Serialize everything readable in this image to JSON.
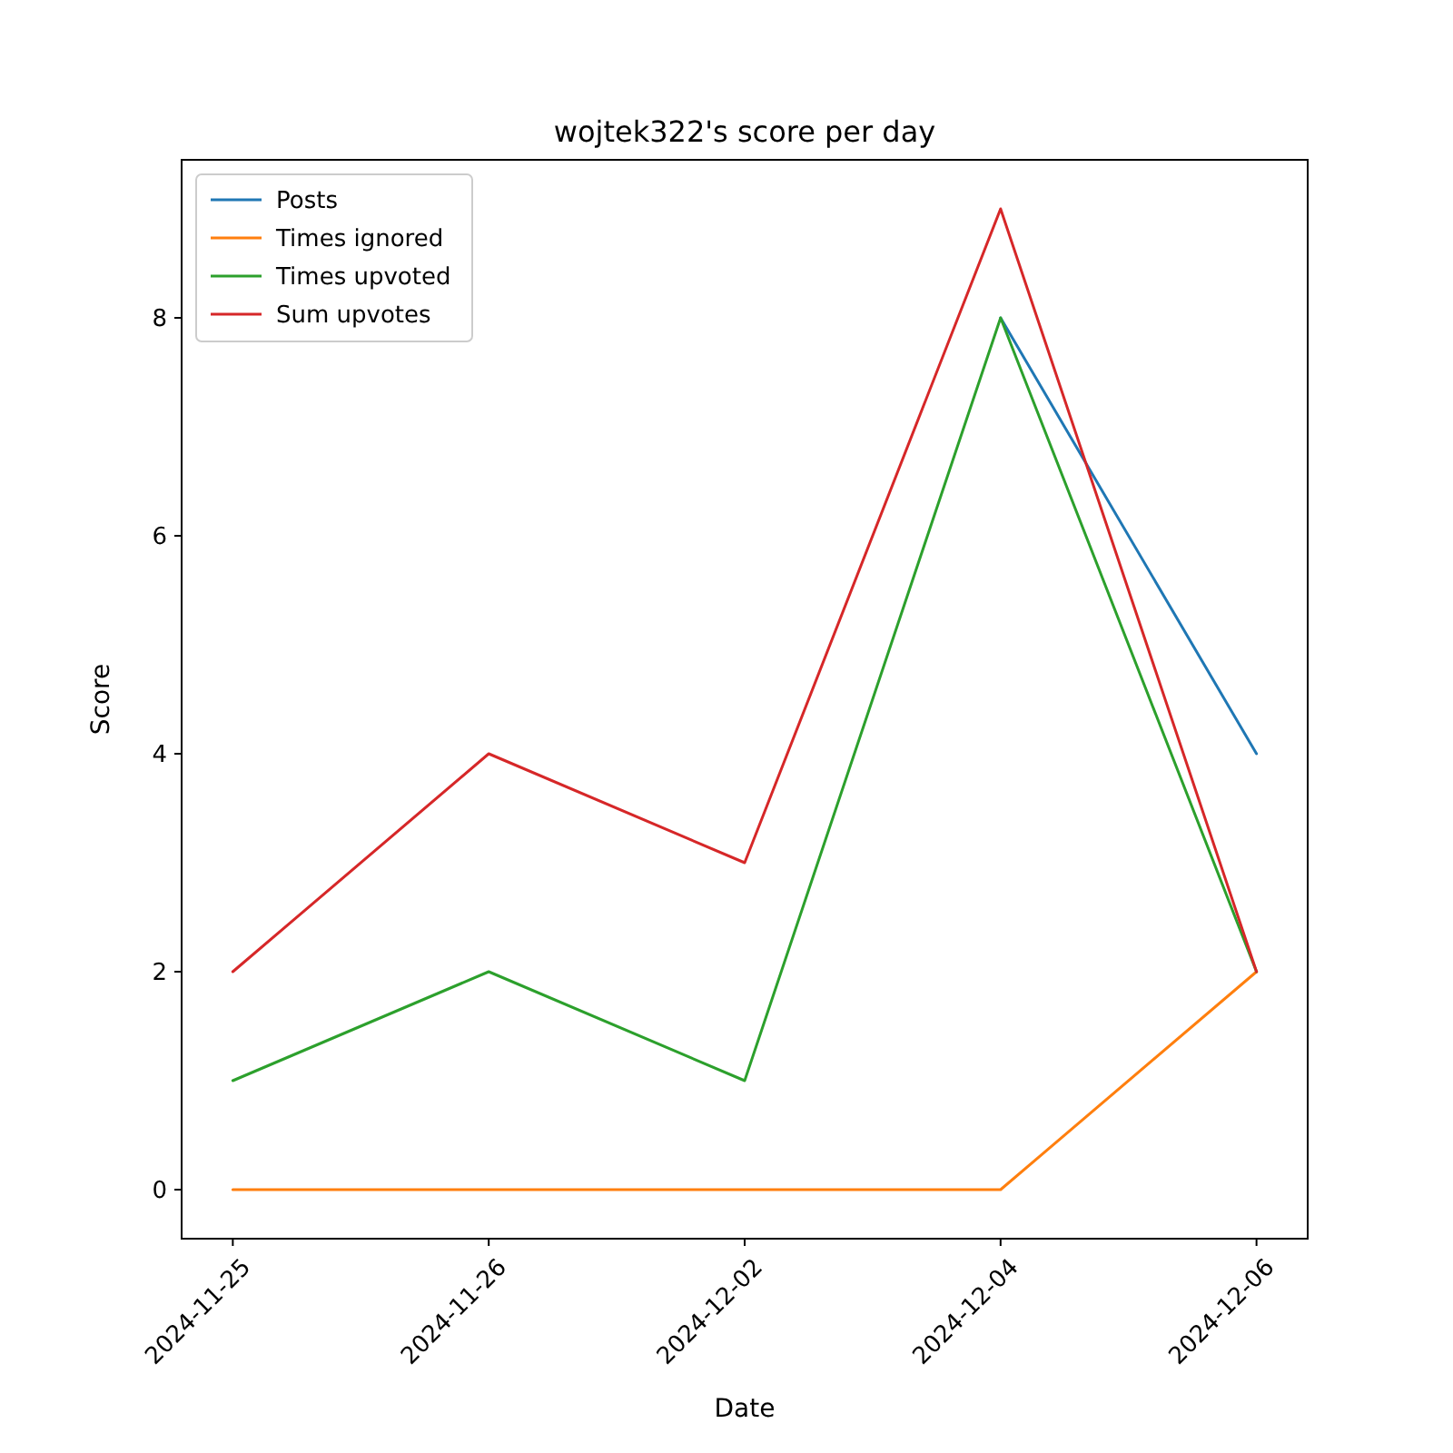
{
  "chart_data": {
    "type": "line",
    "title": "wojtek322's score per day",
    "xlabel": "Date",
    "ylabel": "Score",
    "categories": [
      "2024-11-25",
      "2024-11-26",
      "2024-12-02",
      "2024-12-04",
      "2024-12-06"
    ],
    "series": [
      {
        "name": "Posts",
        "color": "#1f77b4",
        "values": [
          null,
          null,
          null,
          8,
          4
        ]
      },
      {
        "name": "Times ignored",
        "color": "#ff7f0e",
        "values": [
          0,
          0,
          0,
          0,
          2
        ]
      },
      {
        "name": "Times upvoted",
        "color": "#2ca02c",
        "values": [
          1,
          2,
          1,
          8,
          2
        ]
      },
      {
        "name": "Sum upvotes",
        "color": "#d62728",
        "values": [
          2,
          4,
          3,
          9,
          2
        ]
      }
    ],
    "ylim": [
      -0.45,
      9.45
    ],
    "yticks": [
      0,
      2,
      4,
      6,
      8
    ],
    "legend": "top left",
    "grid": false,
    "line_style": "solid",
    "marker": "none"
  }
}
